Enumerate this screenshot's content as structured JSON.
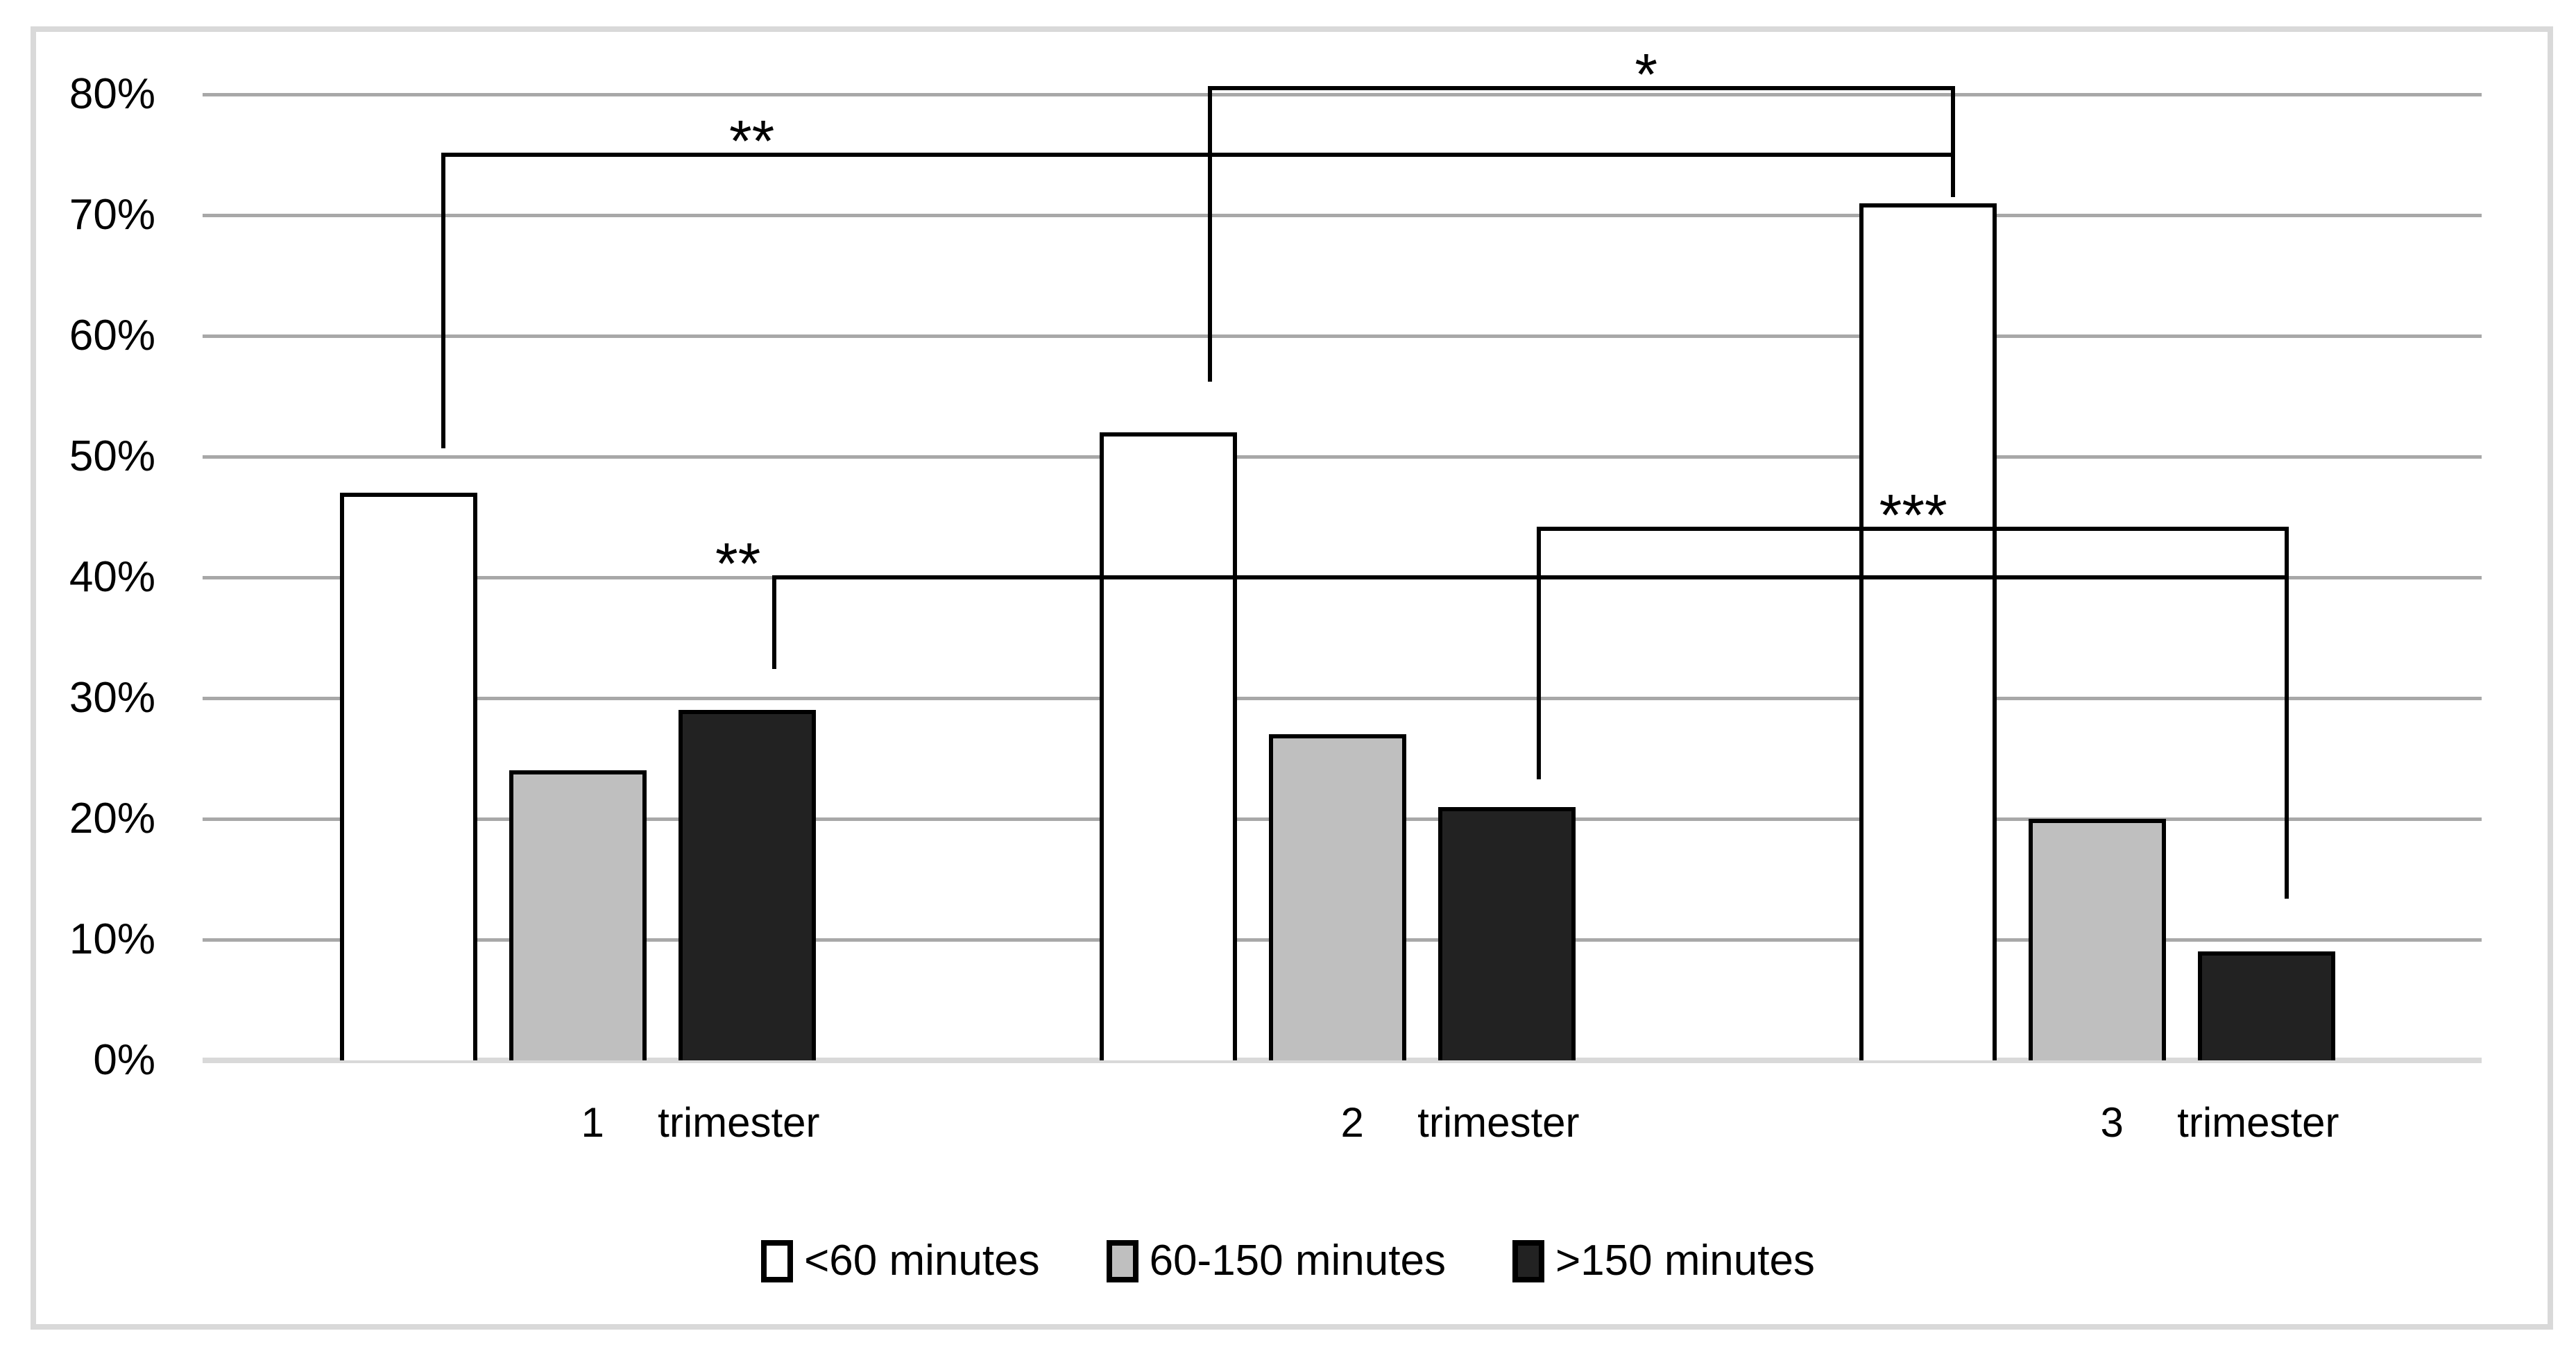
{
  "chart_data": {
    "type": "bar",
    "title": "",
    "categories": [
      "1  trimester",
      "2  trimester",
      "3  trimester"
    ],
    "series": [
      {
        "name": "<60 minutes",
        "color": "#ffffff",
        "values": [
          47,
          52,
          71
        ]
      },
      {
        "name": "60-150 minutes",
        "color": "#bfbfbf",
        "values": [
          24,
          27,
          20
        ]
      },
      {
        "name": ">150 minutes",
        "color": "#222222",
        "values": [
          29,
          21,
          9
        ]
      }
    ],
    "y_ticks": [
      "0%",
      "10%",
      "20%",
      "30%",
      "40%",
      "50%",
      "60%",
      "70%",
      "80%"
    ],
    "ylim": [
      0,
      80
    ],
    "grid": true,
    "legend_position": "bottom",
    "annotations": [
      {
        "label": "**",
        "y": 75,
        "x1": 0.1056,
        "x2": 0.7679,
        "drop_left_to": 50.7,
        "drop_right_to": null,
        "label_x": 0.241
      },
      {
        "label": "*",
        "y": 80.5,
        "x1": 0.4421,
        "x2": 0.7679,
        "drop_left_to": 56.2,
        "drop_right_to": 71.5,
        "label_x": 0.6334
      },
      {
        "label": "**",
        "y": 40,
        "x1": 0.2507,
        "x2": 0.9146,
        "drop_left_to": 32.4,
        "drop_right_to": null,
        "label_x": 0.2349
      },
      {
        "label": "***",
        "y": 44,
        "x1": 0.5863,
        "x2": 0.9146,
        "drop_left_to": 23.3,
        "drop_right_to": 13.4,
        "label_x": 0.7506
      }
    ],
    "colors": {
      "gridline": "#a8a8a8",
      "axis_line": "#d9d9d9",
      "frame_border": "#d9d9d9",
      "bar_outline": "#000000",
      "annotation": "#000000",
      "text": "#000000"
    }
  }
}
